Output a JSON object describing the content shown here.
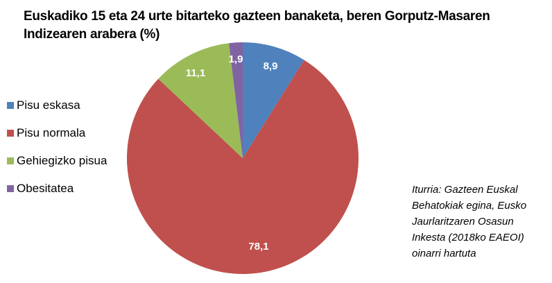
{
  "title_line1": "Euskadiko 15 eta 24 urte bitarteko gazteen  banaketa, beren Gorputz-Masaren",
  "title_line2": "Indizearen arabera (%)",
  "legend": [
    {
      "label": "Pisu eskasa",
      "color": "#4F81BD"
    },
    {
      "label": "Pisu normala",
      "color": "#C0504D"
    },
    {
      "label": "Gehiegizko pisua",
      "color": "#9BBB59"
    },
    {
      "label": "Obesitatea",
      "color": "#8064A2"
    }
  ],
  "source": {
    "lines": [
      "Iturria: Gazteen  Euskal",
      "Behatokiak egina, Eusko",
      "Jaurlaritzaren  Osasun",
      "Inkesta (2018ko EAEOI)",
      "oinarri hartuta"
    ]
  },
  "labels": {
    "pisu_eskasa": "8,9",
    "pisu_normala": "78,1",
    "gehiegizko_pisua": "11,1",
    "obesitatea": "1,9"
  },
  "chart_data": {
    "type": "pie",
    "title": "Euskadiko 15 eta 24 urte bitarteko gazteen banaketa, beren Gorputz-Masaren Indizearen arabera (%)",
    "categories": [
      "Pisu eskasa",
      "Pisu normala",
      "Gehiegizko pisua",
      "Obesitatea"
    ],
    "values": [
      8.9,
      78.1,
      11.1,
      1.9
    ],
    "colors": [
      "#4F81BD",
      "#C0504D",
      "#9BBB59",
      "#8064A2"
    ],
    "data_labels": [
      "8,9",
      "78,1",
      "11,1",
      "1,9"
    ],
    "start_angle": "12 o'clock, clockwise",
    "legend_position": "left",
    "annotation": "Iturria: Gazteen Euskal Behatokiak egina, Eusko Jaurlaritzaren Osasun Inkesta (2018ko EAEOI) oinarri hartuta"
  }
}
